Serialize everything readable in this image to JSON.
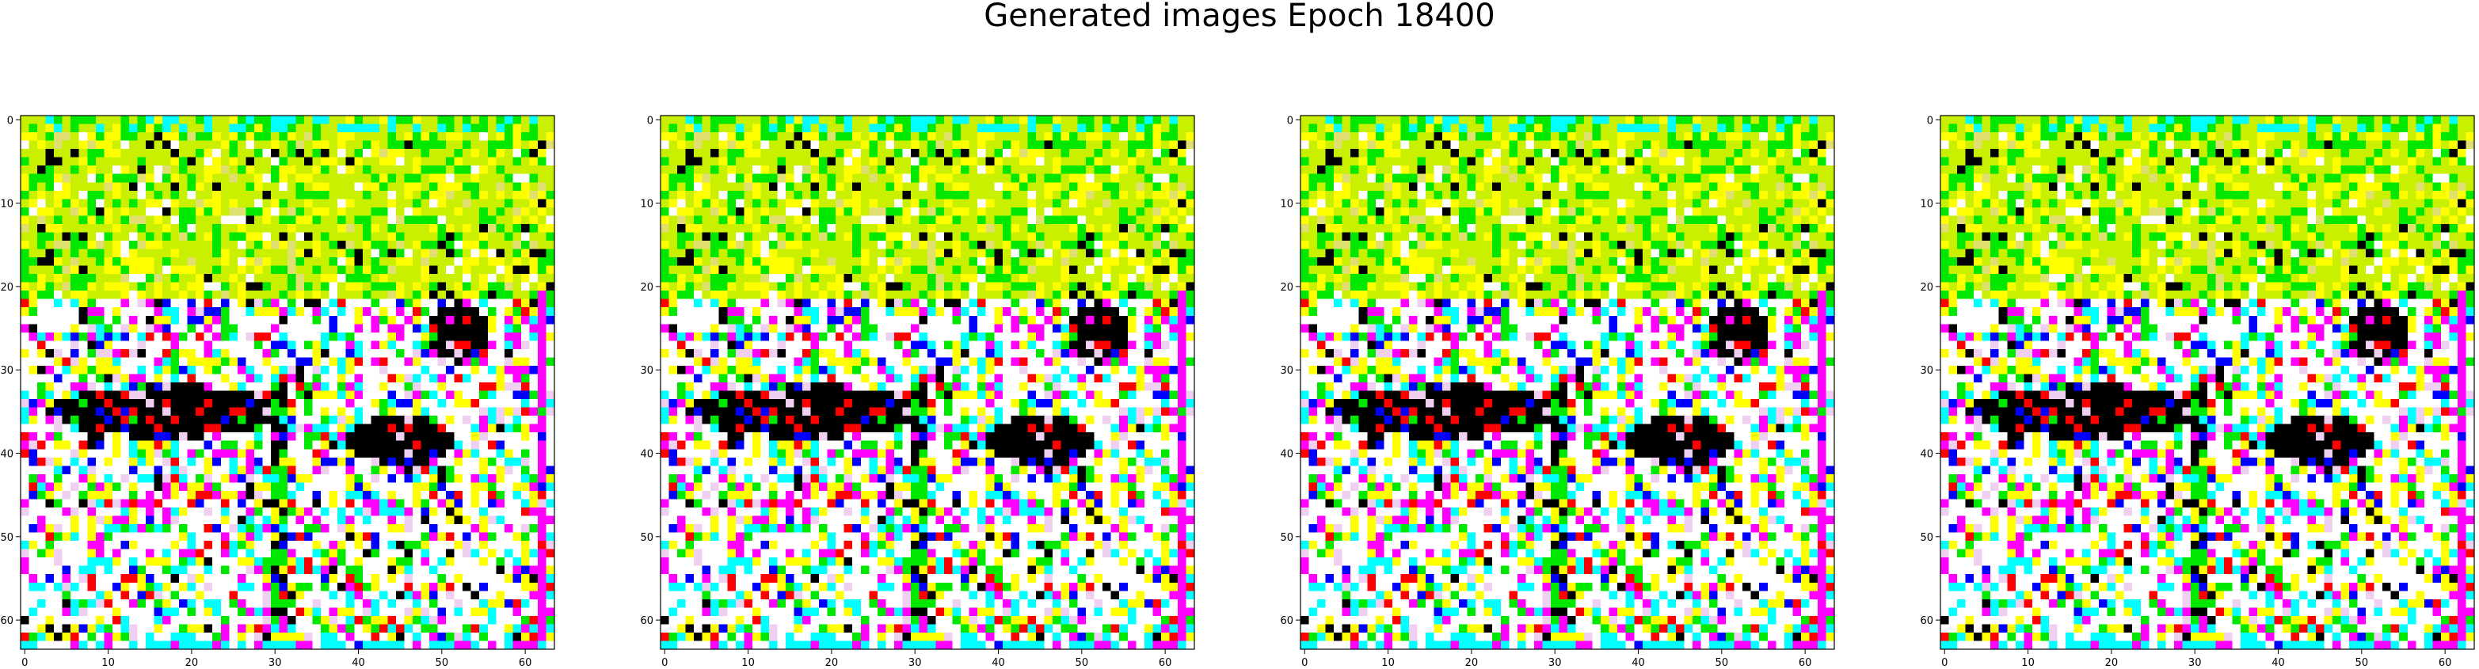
{
  "figure": {
    "title": "Generated images Epoch 18400"
  },
  "panels": [
    {
      "name": "generated-image-1"
    },
    {
      "name": "generated-image-2"
    },
    {
      "name": "generated-image-3"
    },
    {
      "name": "generated-image-4"
    }
  ],
  "axes": {
    "x_ticks": [
      "0",
      "10",
      "20",
      "30",
      "40",
      "50",
      "60"
    ],
    "y_ticks": [
      "0",
      "10",
      "20",
      "30",
      "40",
      "50",
      "60"
    ],
    "image_size": 64
  },
  "palette": {
    "lime": "#c8f000",
    "green": "#00e800",
    "yellow": "#ffff00",
    "black": "#000000",
    "white": "#ffffff",
    "magenta": "#ff00ff",
    "cyan": "#00ffff",
    "blue": "#0000ff",
    "red": "#ff0000"
  }
}
